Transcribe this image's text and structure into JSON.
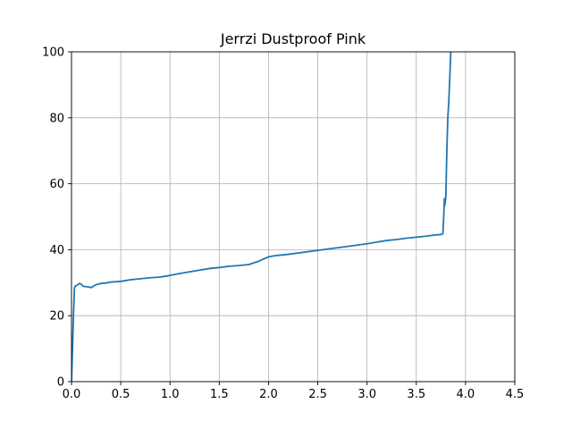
{
  "chart_data": {
    "type": "line",
    "title": "Jerrzi Dustproof Pink",
    "xlabel": "",
    "ylabel": "",
    "xlim": [
      0,
      4.5
    ],
    "ylim": [
      0,
      100
    ],
    "x_ticks": [
      0.0,
      0.5,
      1.0,
      1.5,
      2.0,
      2.5,
      3.0,
      3.5,
      4.0,
      4.5
    ],
    "x_tick_labels": [
      "0.0",
      "0.5",
      "1.0",
      "1.5",
      "2.0",
      "2.5",
      "3.0",
      "3.5",
      "4.0",
      "4.5"
    ],
    "y_ticks": [
      0,
      20,
      40,
      60,
      80,
      100
    ],
    "y_tick_labels": [
      "0",
      "20",
      "40",
      "60",
      "80",
      "100"
    ],
    "grid": true,
    "line_color": "#1f77b4",
    "series": [
      {
        "x": [
          0.0,
          0.01,
          0.02,
          0.03,
          0.04,
          0.06,
          0.08,
          0.1,
          0.12,
          0.15,
          0.18,
          0.2,
          0.22,
          0.25,
          0.28,
          0.3,
          0.35,
          0.4,
          0.5,
          0.6,
          0.7,
          0.8,
          0.9,
          1.0,
          1.1,
          1.2,
          1.3,
          1.4,
          1.5,
          1.6,
          1.7,
          1.8,
          1.85,
          1.9,
          1.95,
          2.0,
          2.05,
          2.1,
          2.2,
          2.4,
          2.6,
          2.8,
          3.0,
          3.1,
          3.2,
          3.3,
          3.4,
          3.5,
          3.6,
          3.7,
          3.75,
          3.77,
          3.78,
          3.785,
          3.79,
          3.8,
          3.81,
          3.82,
          3.83,
          3.84,
          3.85
        ],
        "y": [
          0,
          10,
          20,
          28.5,
          29.0,
          29.3,
          29.8,
          29.5,
          28.9,
          28.8,
          28.7,
          28.5,
          28.9,
          29.4,
          29.6,
          29.8,
          29.9,
          30.2,
          30.4,
          30.9,
          31.2,
          31.5,
          31.7,
          32.2,
          32.8,
          33.3,
          33.8,
          34.3,
          34.6,
          35.0,
          35.2,
          35.5,
          36.0,
          36.5,
          37.2,
          37.8,
          38.1,
          38.3,
          38.6,
          39.4,
          40.2,
          41.0,
          41.8,
          42.3,
          42.8,
          43.1,
          43.5,
          43.8,
          44.1,
          44.5,
          44.6,
          44.8,
          51.0,
          55.5,
          53.5,
          56.0,
          70.0,
          80.0,
          85.0,
          92.0,
          100
        ]
      }
    ]
  }
}
